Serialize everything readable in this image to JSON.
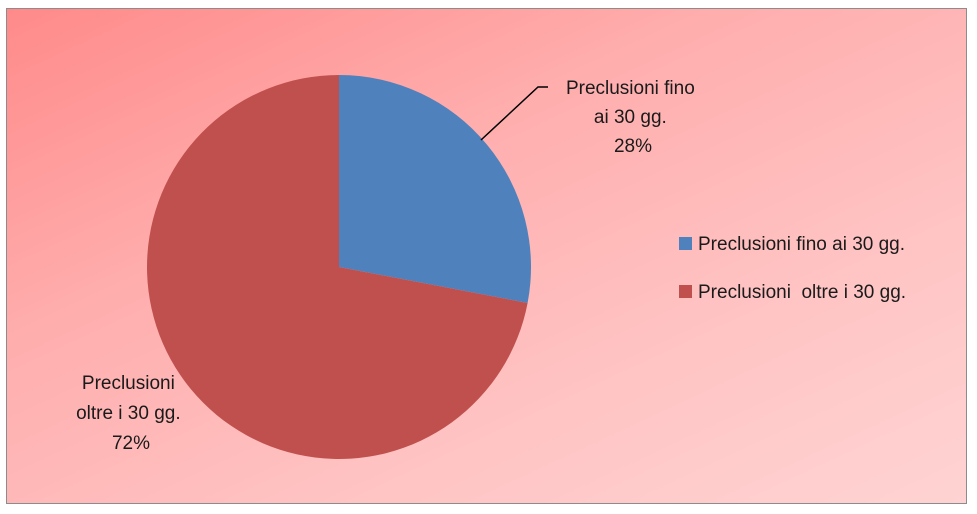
{
  "chart_data": {
    "type": "pie",
    "title": "",
    "slices": [
      {
        "name": "Preclusioni fino ai 30 gg.",
        "label_lines": [
          "Preclusioni fino",
          "ai 30 gg."
        ],
        "percent_label": "28%",
        "value": 28,
        "color": "#4f81bd"
      },
      {
        "name": "Preclusioni  oltre i 30 gg.",
        "label_lines": [
          "Preclusioni",
          "oltre i 30 gg."
        ],
        "percent_label": "72%",
        "value": 72,
        "color": "#c0504d"
      }
    ],
    "legend": {
      "placement": "right",
      "entries": [
        "Preclusioni fino ai 30 gg.",
        "Preclusioni  oltre i 30 gg."
      ]
    }
  }
}
